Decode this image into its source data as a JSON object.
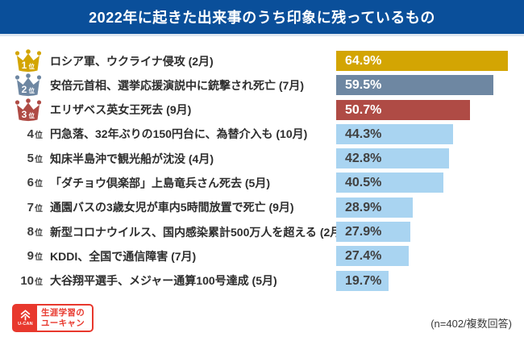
{
  "title": "2022年に起きた出来事のうち印象に残っているもの",
  "footnote": "(n=402/複数回答)",
  "logo": {
    "brand": "U-CAN",
    "line1": "生涯学習の",
    "line2": "ユーキャン"
  },
  "colors": {
    "banner": "#0a4f9a",
    "banner_border": "#dde6f0",
    "rank1_gold": "#d3a503",
    "rank2_blue_gray": "#6e87a2",
    "rank3_red": "#af4b45",
    "default_bar_blue": "#a9d4f1",
    "logo_red": "#e8382d",
    "text_dark": "#2d2d2d"
  },
  "chart_data": {
    "type": "bar",
    "orientation": "horizontal",
    "title": "2022年に起きた出来事のうち印象に残っているもの",
    "value_unit": "%",
    "xlim": [
      0,
      66
    ],
    "legend": "none",
    "grid": false,
    "note": "(n=402/複数回答)",
    "categories": [
      "ロシア軍、ウクライナ侵攻 (2月)",
      "安倍元首相、選挙応援演説中に銃撃され死亡 (7月)",
      "エリザベス英女王死去 (9月)",
      "円急落、32年ぶりの150円台に、為替介入も (10月)",
      "知床半島沖で観光船が沈没 (4月)",
      "「ダチョウ倶楽部」上島竜兵さん死去 (5月)",
      "通園バスの3歳女児が車内5時間放置で死亡 (9月)",
      "新型コロナウイルス、国内感染累計500万人を超える (2月)",
      "KDDI、全国で通信障害 (7月)",
      "大谷翔平選手、メジャー通算100号達成 (5月)"
    ],
    "values": [
      64.9,
      59.5,
      50.7,
      44.3,
      42.8,
      40.5,
      28.9,
      27.9,
      27.4,
      19.7
    ],
    "rows": [
      {
        "rank": "1",
        "rank_suffix": "位",
        "label": "ロシア軍、ウクライナ侵攻 (2月)",
        "value": 64.9,
        "display": "64.9%",
        "color": "#d3a503",
        "value_text_color": "#ffffff",
        "crown": true
      },
      {
        "rank": "2",
        "rank_suffix": "位",
        "label": "安倍元首相、選挙応援演説中に銃撃され死亡 (7月)",
        "value": 59.5,
        "display": "59.5%",
        "color": "#6e87a2",
        "value_text_color": "#ffffff",
        "crown": true
      },
      {
        "rank": "3",
        "rank_suffix": "位",
        "label": "エリザベス英女王死去 (9月)",
        "value": 50.7,
        "display": "50.7%",
        "color": "#af4b45",
        "value_text_color": "#ffffff",
        "crown": true
      },
      {
        "rank": "4",
        "rank_suffix": "位",
        "label": "円急落、32年ぶりの150円台に、為替介入も (10月)",
        "value": 44.3,
        "display": "44.3%",
        "color": "#a9d4f1",
        "value_text_color": "#404040",
        "crown": false
      },
      {
        "rank": "5",
        "rank_suffix": "位",
        "label": "知床半島沖で観光船が沈没 (4月)",
        "value": 42.8,
        "display": "42.8%",
        "color": "#a9d4f1",
        "value_text_color": "#404040",
        "crown": false
      },
      {
        "rank": "6",
        "rank_suffix": "位",
        "label": "「ダチョウ倶楽部」上島竜兵さん死去 (5月)",
        "value": 40.5,
        "display": "40.5%",
        "color": "#a9d4f1",
        "value_text_color": "#404040",
        "crown": false
      },
      {
        "rank": "7",
        "rank_suffix": "位",
        "label": "通園バスの3歳女児が車内5時間放置で死亡 (9月)",
        "value": 28.9,
        "display": "28.9%",
        "color": "#a9d4f1",
        "value_text_color": "#404040",
        "crown": false
      },
      {
        "rank": "8",
        "rank_suffix": "位",
        "label": "新型コロナウイルス、国内感染累計500万人を超える (2月)",
        "value": 27.9,
        "display": "27.9%",
        "color": "#a9d4f1",
        "value_text_color": "#404040",
        "crown": false
      },
      {
        "rank": "9",
        "rank_suffix": "位",
        "label": "KDDI、全国で通信障害 (7月)",
        "value": 27.4,
        "display": "27.4%",
        "color": "#a9d4f1",
        "value_text_color": "#404040",
        "crown": false
      },
      {
        "rank": "10",
        "rank_suffix": "位",
        "label": "大谷翔平選手、メジャー通算100号達成 (5月)",
        "value": 19.7,
        "display": "19.7%",
        "color": "#a9d4f1",
        "value_text_color": "#404040",
        "crown": false
      }
    ]
  }
}
